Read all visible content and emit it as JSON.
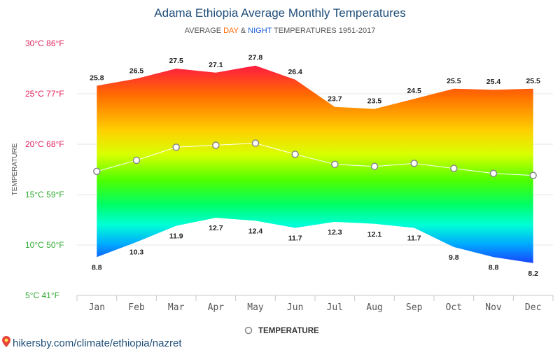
{
  "header": {
    "title": "Adama Ethiopia Average Monthly Temperatures",
    "subtitle_prefix": "AVERAGE ",
    "subtitle_day": "DAY",
    "subtitle_amp": " & ",
    "subtitle_night": "NIGHT",
    "subtitle_suffix": " TEMPERATURES 1951-2017"
  },
  "footer": {
    "url": "hikersby.com/climate/ethiopia/nazret"
  },
  "colors": {
    "title": "#1f4e79",
    "day": "#ff6600",
    "night": "#1f5fd6",
    "tick_y_top": "#e0245e",
    "tick_y_bottom": "#33aa33",
    "temperature_line": "#ffffff",
    "marker_stroke": "#888888"
  },
  "chart_data": {
    "type": "area",
    "title": "Adama Ethiopia Average Monthly Temperatures",
    "subtitle": "AVERAGE DAY & NIGHT TEMPERATURES 1951-2017",
    "ylabel": "TEMPERATURE",
    "xlabel": "",
    "ylim": [
      5,
      30
    ],
    "y_ticks": [
      {
        "value": 30,
        "label": "30°C 86°F"
      },
      {
        "value": 25,
        "label": "25°C 77°F"
      },
      {
        "value": 20,
        "label": "20°C 68°F"
      },
      {
        "value": 15,
        "label": "15°C 59°F"
      },
      {
        "value": 10,
        "label": "10°C 50°F"
      },
      {
        "value": 5,
        "label": "5°C 41°F"
      }
    ],
    "grid": true,
    "legend_position": "bottom-center",
    "categories": [
      "Jan",
      "Feb",
      "Mar",
      "Apr",
      "May",
      "Jun",
      "Jul",
      "Aug",
      "Sep",
      "Oct",
      "Nov",
      "Dec"
    ],
    "series": [
      {
        "name": "",
        "values": [
          25.8,
          26.5,
          27.5,
          27.1,
          27.8,
          26.4,
          23.7,
          23.5,
          24.5,
          25.5,
          25.4,
          25.5
        ]
      },
      {
        "name": "",
        "values": [
          8.8,
          10.3,
          11.9,
          12.7,
          12.4,
          11.7,
          12.3,
          12.1,
          11.7,
          9.8,
          8.8,
          8.2
        ]
      },
      {
        "name": "TEMPERATURE",
        "values": [
          17.3,
          18.4,
          19.7,
          19.9,
          20.1,
          19.0,
          18.0,
          17.8,
          18.1,
          17.6,
          17.1,
          16.9
        ]
      }
    ]
  }
}
